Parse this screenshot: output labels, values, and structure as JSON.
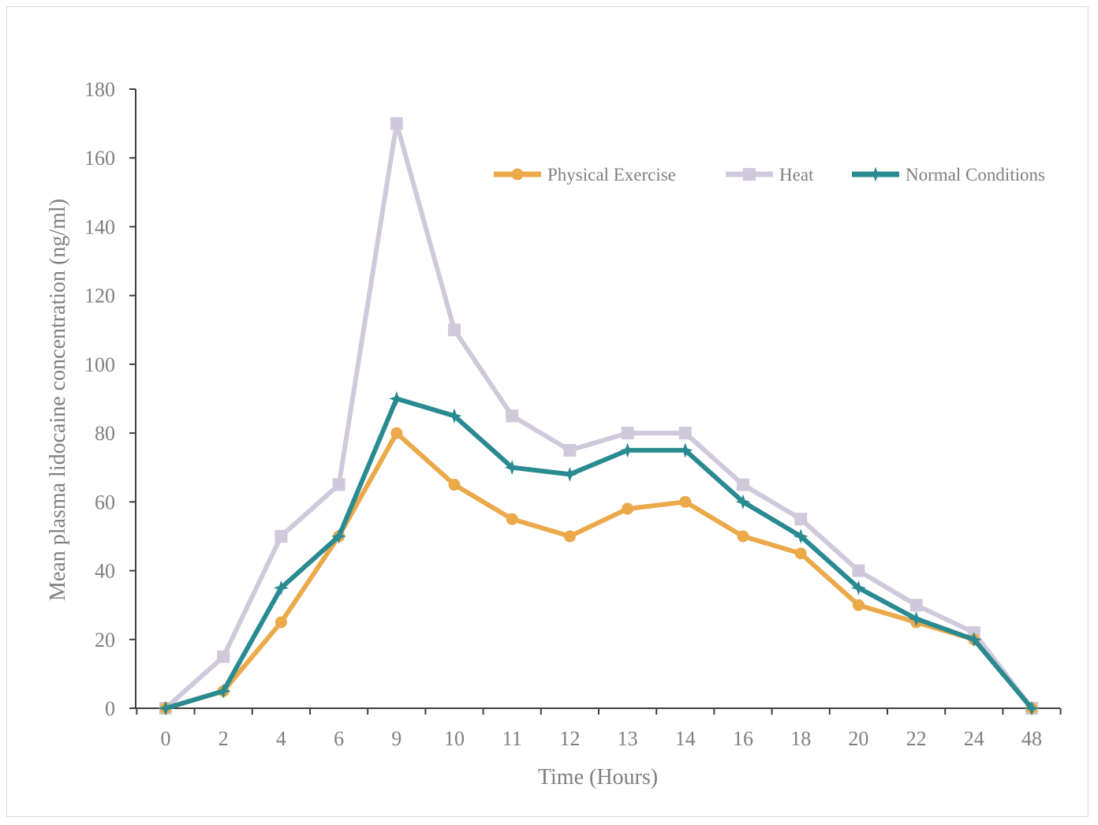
{
  "chart_data": {
    "type": "line",
    "title": "",
    "xlabel": "Time (Hours)",
    "ylabel": "Mean plasma lidocaine concentration (ng/ml)",
    "ylim": [
      0,
      180
    ],
    "yticks": [
      "0",
      "20",
      "40",
      "60",
      "80",
      "100",
      "120",
      "140",
      "160",
      "180"
    ],
    "yticks_values": [
      0,
      20,
      40,
      60,
      80,
      100,
      120,
      140,
      160,
      180
    ],
    "categories": [
      "0",
      "2",
      "4",
      "6",
      "9",
      "10",
      "11",
      "12",
      "13",
      "14",
      "16",
      "18",
      "20",
      "22",
      "24",
      "48"
    ],
    "grid": false,
    "legend_position": "top-right",
    "series": [
      {
        "name": "Physical Exercise",
        "color": "#EBA94A",
        "marker": "circle",
        "values": [
          0,
          5,
          25,
          50,
          80,
          65,
          55,
          50,
          58,
          60,
          50,
          45,
          30,
          25,
          20,
          0
        ]
      },
      {
        "name": "Heat",
        "color": "#CFC9DB",
        "marker": "square",
        "values": [
          0,
          15,
          50,
          65,
          170,
          110,
          85,
          75,
          80,
          80,
          65,
          55,
          40,
          30,
          22,
          0
        ]
      },
      {
        "name": "Normal Conditions",
        "color": "#2A8A91",
        "marker": "star",
        "values": [
          0,
          5,
          35,
          50,
          90,
          85,
          70,
          68,
          75,
          75,
          60,
          50,
          35,
          26,
          20,
          0
        ]
      }
    ]
  }
}
